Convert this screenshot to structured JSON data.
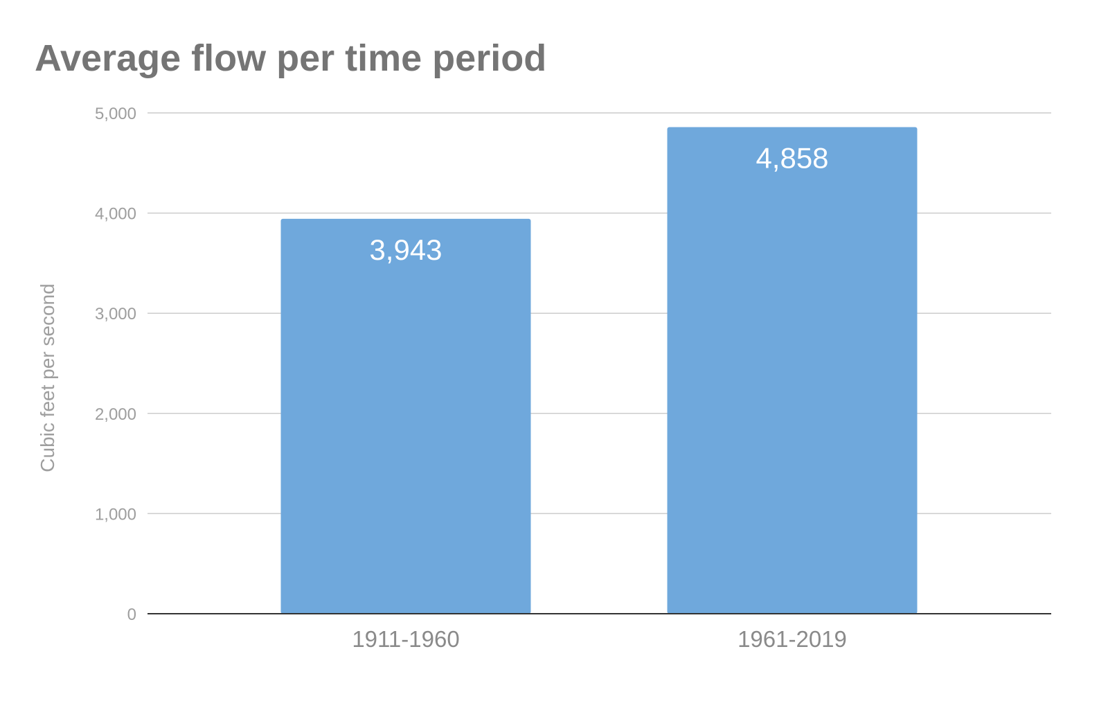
{
  "chart_data": {
    "type": "bar",
    "title": "Average flow per time period",
    "xlabel": "",
    "ylabel": "Cubic feet per second",
    "categories": [
      "1911-1960",
      "1961-2019"
    ],
    "values": [
      3943,
      4858
    ],
    "data_labels": [
      "3,943",
      "4,858"
    ],
    "ylim": [
      0,
      5000
    ],
    "yticks": [
      0,
      1000,
      2000,
      3000,
      4000,
      5000
    ],
    "ytick_labels": [
      "0",
      "1,000",
      "2,000",
      "3,000",
      "4,000",
      "5,000"
    ],
    "grid": true,
    "legend": "none",
    "bar_color": "#6fa8dc"
  }
}
